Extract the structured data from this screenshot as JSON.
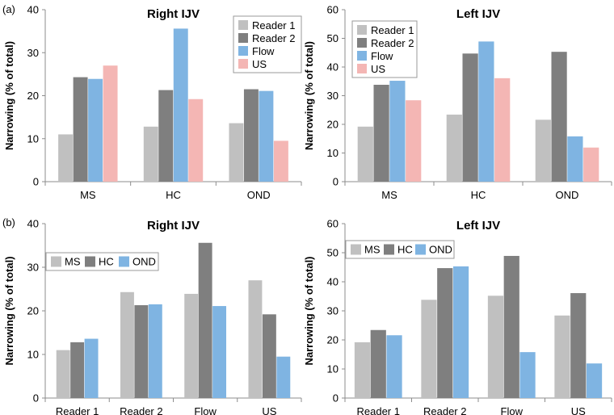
{
  "panel_labels": {
    "a": "(a)",
    "b": "(b)"
  },
  "chart_data": [
    {
      "type": "bar",
      "title": "Right IJV",
      "ylabel": "Narrowing (% of total)",
      "xlabel": "",
      "ylim": [
        0,
        40
      ],
      "yticks": [
        0,
        10,
        20,
        30,
        40
      ],
      "categories": [
        "MS",
        "HC",
        "OND"
      ],
      "legend_position": "top-right",
      "series": [
        {
          "name": "Reader 1",
          "color": "#c0c0c0",
          "values": [
            11.0,
            12.8,
            13.6
          ]
        },
        {
          "name": "Reader 2",
          "color": "#7f7f7f",
          "values": [
            24.3,
            21.3,
            21.5
          ]
        },
        {
          "name": "Flow",
          "color": "#7fb4e2",
          "values": [
            23.9,
            35.6,
            21.1
          ]
        },
        {
          "name": "US",
          "color": "#f4b6b4",
          "values": [
            27.0,
            19.2,
            9.5
          ]
        }
      ]
    },
    {
      "type": "bar",
      "title": "Left IJV",
      "ylabel": "Narrowing (% of total)",
      "xlabel": "",
      "ylim": [
        0,
        60
      ],
      "yticks": [
        0,
        10,
        20,
        30,
        40,
        50,
        60
      ],
      "categories": [
        "MS",
        "HC",
        "OND"
      ],
      "legend_position": "top-left",
      "series": [
        {
          "name": "Reader 1",
          "color": "#c0c0c0",
          "values": [
            19.2,
            23.4,
            21.6
          ]
        },
        {
          "name": "Reader 2",
          "color": "#7f7f7f",
          "values": [
            33.8,
            44.7,
            45.3
          ]
        },
        {
          "name": "Flow",
          "color": "#7fb4e2",
          "values": [
            35.2,
            48.9,
            15.8
          ]
        },
        {
          "name": "US",
          "color": "#f4b6b4",
          "values": [
            28.4,
            36.1,
            11.9
          ]
        }
      ]
    },
    {
      "type": "bar",
      "title": "Right IJV",
      "ylabel": "Narrowing (% of total)",
      "xlabel": "",
      "ylim": [
        0,
        40
      ],
      "yticks": [
        0,
        10,
        20,
        30,
        40
      ],
      "categories": [
        "Reader 1",
        "Reader 2",
        "Flow",
        "US"
      ],
      "legend_position": "top-left",
      "series": [
        {
          "name": "MS",
          "color": "#c0c0c0",
          "values": [
            11.0,
            24.3,
            23.9,
            27.0
          ]
        },
        {
          "name": "HC",
          "color": "#7f7f7f",
          "values": [
            12.8,
            21.3,
            35.6,
            19.2
          ]
        },
        {
          "name": "OND",
          "color": "#7fb4e2",
          "values": [
            13.6,
            21.5,
            21.1,
            9.5
          ]
        }
      ]
    },
    {
      "type": "bar",
      "title": "Left IJV",
      "ylabel": "Narrowing (% of total)",
      "xlabel": "",
      "ylim": [
        0,
        60
      ],
      "yticks": [
        0,
        10,
        20,
        30,
        40,
        50,
        60
      ],
      "categories": [
        "Reader 1",
        "Reader 2",
        "Flow",
        "US"
      ],
      "legend_position": "top-left",
      "series": [
        {
          "name": "MS",
          "color": "#c0c0c0",
          "values": [
            19.2,
            33.8,
            35.2,
            28.4
          ]
        },
        {
          "name": "HC",
          "color": "#7f7f7f",
          "values": [
            23.4,
            44.7,
            48.9,
            36.1
          ]
        },
        {
          "name": "OND",
          "color": "#7fb4e2",
          "values": [
            21.6,
            45.3,
            15.8,
            11.9
          ]
        }
      ]
    }
  ]
}
